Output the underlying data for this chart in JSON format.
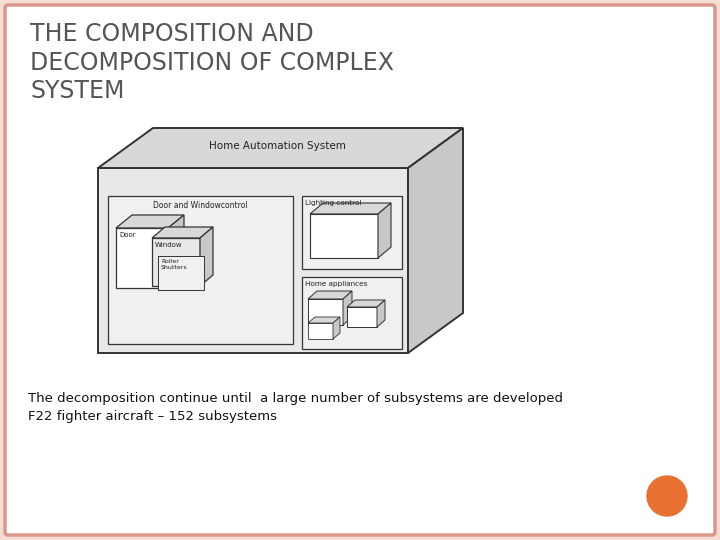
{
  "title": "THE COMPOSITION AND\nDECOMPOSITION OF COMPLEX\nSYSTEM",
  "title_fontsize": 17,
  "title_color": "#555555",
  "body_text_line1": "The decomposition continue until  a large number of subsystems are developed",
  "body_text_line2": "F22 fighter aircraft – 152 subsystems",
  "body_fontsize": 9.5,
  "background_color": "#f5ddd5",
  "slide_bg": "#ffffff",
  "border_color": "#d9988a",
  "orange_circle_color": "#e87030",
  "diagram_label": "Home Automation System",
  "sub1_label": "Door and Windowcontrol",
  "sub2_label": "Lighting control",
  "sub3_label": "Home appliances",
  "sub4_label": "Door",
  "sub5_label": "Window",
  "sub6_label": "Roller\nShutters",
  "fc_main": "#e8e8e8",
  "fc_side": "#c8c8c8",
  "fc_top": "#d8d8d8",
  "fc_inner": "#f0f0f0",
  "fc_white": "#ffffff",
  "lc": "#333333"
}
